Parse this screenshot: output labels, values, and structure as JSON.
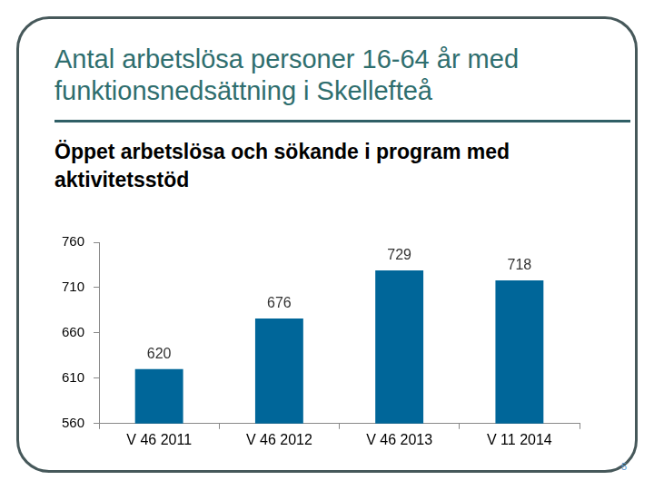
{
  "chart_data": {
    "type": "bar",
    "title": "Antal arbetslösa personer 16-64 år med funktionsnedsättning i Skellefteå",
    "subtitle": "Öppet arbetslösa och sökande i program med aktivitetsstöd",
    "categories": [
      "V 46 2011",
      "V 46 2012",
      "V 46 2013",
      "V 11 2014"
    ],
    "values": [
      620,
      676,
      729,
      718
    ],
    "color": "#006699",
    "ylim": [
      560,
      760
    ],
    "yticks": [
      560,
      610,
      660,
      710,
      760
    ],
    "grid": false,
    "data_labels": true
  },
  "page_number": "5"
}
